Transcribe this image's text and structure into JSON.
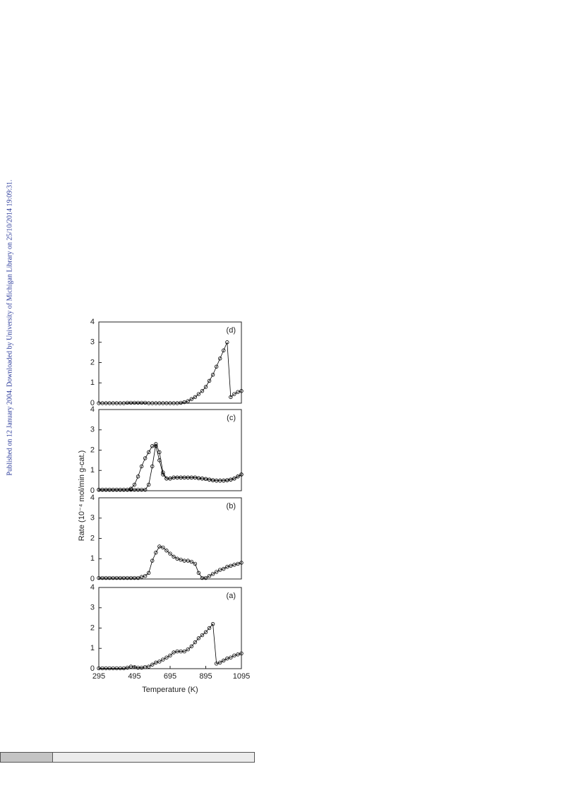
{
  "side_note": "Published on 12 January 2004. Downloaded by University of Michigan Library on 25/10/2014 19:09:31.",
  "figure": {
    "y_label": "Rate (10⁻⁴ mol/min g-cat.)",
    "x_label": "Temperature (K)"
  },
  "chart_data": [
    {
      "type": "line",
      "label": "(d)",
      "xlim": [
        295,
        1095
      ],
      "ylim": [
        0,
        4
      ],
      "yticks": [
        0,
        1,
        2,
        3,
        4
      ],
      "x": [
        295,
        315,
        335,
        355,
        375,
        395,
        415,
        435,
        455,
        475,
        495,
        515,
        535,
        555,
        575,
        595,
        615,
        635,
        655,
        675,
        695,
        715,
        735,
        755,
        775,
        795,
        815,
        835,
        855,
        875,
        895,
        915,
        935,
        955,
        975,
        995,
        1015,
        1035,
        1055,
        1075,
        1095
      ],
      "series": [
        {
          "color": "#000000",
          "values": [
            0,
            0,
            0,
            0,
            0,
            0,
            0,
            0,
            0.02,
            0.02,
            0.02,
            0.02,
            0.02,
            0.02,
            0,
            0,
            0,
            0,
            0,
            0,
            0,
            0,
            0,
            0.02,
            0.05,
            0.1,
            0.2,
            0.3,
            0.45,
            0.6,
            0.8,
            1.1,
            1.4,
            1.8,
            2.2,
            2.6,
            3.0,
            0.3,
            0.45,
            0.55,
            0.6
          ]
        }
      ]
    },
    {
      "type": "line",
      "label": "(c)",
      "xlim": [
        295,
        1095
      ],
      "ylim": [
        0,
        4
      ],
      "yticks": [
        0,
        1,
        2,
        3,
        4
      ],
      "x": [
        295,
        315,
        335,
        355,
        375,
        395,
        415,
        435,
        455,
        475,
        495,
        515,
        535,
        555,
        575,
        595,
        615,
        635,
        655,
        675,
        695,
        715,
        735,
        755,
        775,
        795,
        815,
        835,
        855,
        875,
        895,
        915,
        935,
        955,
        975,
        995,
        1015,
        1035,
        1055,
        1075,
        1095
      ],
      "series": [
        {
          "color": "#000000",
          "values": [
            0.05,
            0.05,
            0.05,
            0.05,
            0.05,
            0.05,
            0.05,
            0.05,
            0.05,
            0.1,
            0.3,
            0.7,
            1.2,
            1.6,
            1.9,
            2.2,
            2.2,
            1.5,
            0.8,
            0.6,
            0.6,
            0.65,
            0.65,
            0.65,
            0.65,
            0.65,
            0.65,
            0.65,
            0.62,
            0.6,
            0.58,
            0.55,
            0.52,
            0.5,
            0.5,
            0.5,
            0.52,
            0.55,
            0.6,
            0.7,
            0.8
          ]
        },
        {
          "color": "#000000",
          "values": [
            0.05,
            0.05,
            0.05,
            0.05,
            0.05,
            0.05,
            0.05,
            0.05,
            0.05,
            0.05,
            0.05,
            0.05,
            0.05,
            0.05,
            0.3,
            1.2,
            2.3,
            1.9,
            0.9,
            0.6,
            0.6,
            0.65,
            0.65,
            0.65,
            0.65,
            0.65,
            0.65,
            0.65,
            0.62,
            0.6,
            0.58,
            0.55,
            0.52,
            0.5,
            0.5,
            0.5,
            0.52,
            0.55,
            0.6,
            0.7,
            0.8
          ]
        }
      ]
    },
    {
      "type": "line",
      "label": "(b)",
      "xlim": [
        295,
        1095
      ],
      "ylim": [
        0,
        4
      ],
      "yticks": [
        0,
        1,
        2,
        3,
        4
      ],
      "x": [
        295,
        315,
        335,
        355,
        375,
        395,
        415,
        435,
        455,
        475,
        495,
        515,
        535,
        555,
        575,
        595,
        615,
        635,
        655,
        675,
        695,
        715,
        735,
        755,
        775,
        795,
        815,
        835,
        855,
        875,
        895,
        915,
        935,
        955,
        975,
        995,
        1015,
        1035,
        1055,
        1075,
        1095
      ],
      "series": [
        {
          "color": "#000000",
          "values": [
            0.05,
            0.05,
            0.05,
            0.05,
            0.05,
            0.05,
            0.05,
            0.05,
            0.05,
            0.05,
            0.05,
            0.05,
            0.1,
            0.15,
            0.3,
            0.9,
            1.3,
            1.6,
            1.55,
            1.4,
            1.25,
            1.1,
            1.0,
            0.95,
            0.9,
            0.9,
            0.85,
            0.75,
            0.3,
            0.05,
            0.05,
            0.15,
            0.25,
            0.35,
            0.45,
            0.5,
            0.6,
            0.65,
            0.7,
            0.75,
            0.8
          ]
        }
      ]
    },
    {
      "type": "line",
      "label": "(a)",
      "xlim": [
        295,
        1095
      ],
      "ylim": [
        0,
        4
      ],
      "yticks": [
        0,
        1,
        2,
        3,
        4
      ],
      "xticks": [
        295,
        495,
        695,
        895,
        1095
      ],
      "x": [
        295,
        315,
        335,
        355,
        375,
        395,
        415,
        435,
        455,
        475,
        495,
        515,
        535,
        555,
        575,
        595,
        615,
        635,
        655,
        675,
        695,
        715,
        735,
        755,
        775,
        795,
        815,
        835,
        855,
        875,
        895,
        915,
        935,
        955,
        975,
        995,
        1015,
        1035,
        1055,
        1075,
        1095
      ],
      "series": [
        {
          "color": "#000000",
          "values": [
            0.02,
            0.02,
            0.02,
            0.02,
            0.02,
            0.02,
            0.02,
            0.02,
            0.05,
            0.1,
            0.08,
            0.05,
            0.05,
            0.08,
            0.1,
            0.2,
            0.3,
            0.35,
            0.45,
            0.55,
            0.65,
            0.8,
            0.85,
            0.85,
            0.85,
            0.95,
            1.1,
            1.3,
            1.5,
            1.65,
            1.8,
            2.0,
            2.2,
            0.25,
            0.3,
            0.4,
            0.5,
            0.55,
            0.65,
            0.7,
            0.75
          ]
        }
      ]
    }
  ]
}
